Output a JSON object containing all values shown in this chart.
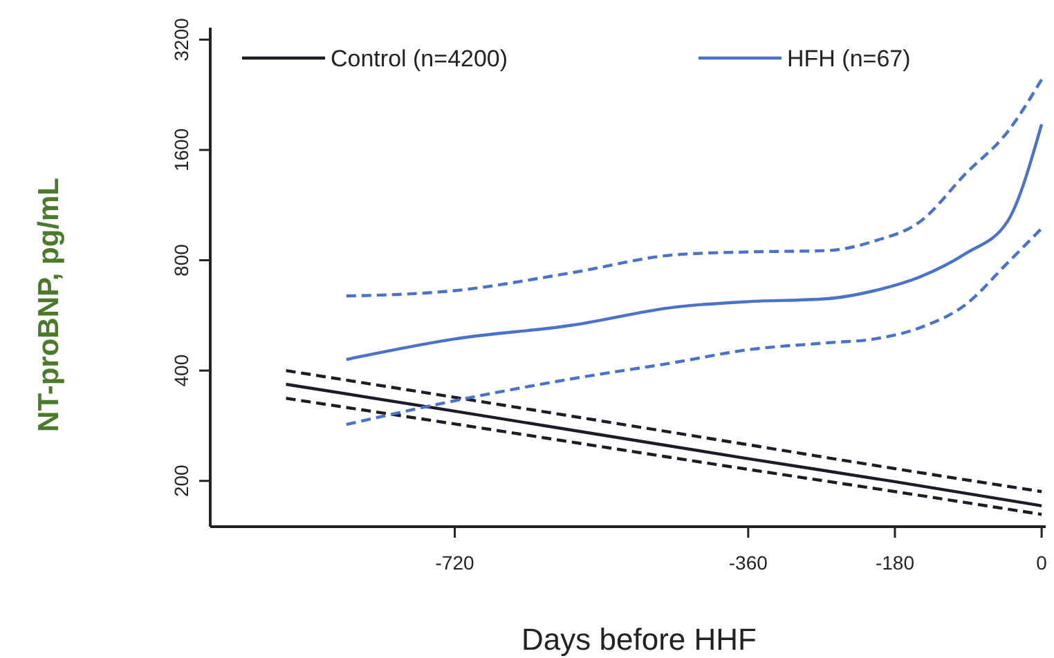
{
  "chart_data": {
    "type": "line",
    "xlabel": "Days before HHF",
    "ylabel": "NT-proBNP, pg/mL",
    "log": "y",
    "xlim": [
      -1020,
      5
    ],
    "ylim": [
      150,
      3450
    ],
    "xticks": [
      -720,
      -360,
      -180,
      0
    ],
    "yticks": [
      200,
      400,
      800,
      1600,
      3200
    ],
    "legend": "top",
    "line_style": "solid",
    "series": [
      {
        "name": "Control (n=4200)",
        "color": "#1c1c28",
        "x": [
          -927,
          -720,
          -360,
          -180,
          0
        ],
        "values": [
          367,
          310,
          230,
          199,
          171
        ]
      },
      {
        "name": "HFH (n=67)",
        "color": "#4a72c8",
        "x": [
          -853,
          -720,
          -576,
          -450,
          -360,
          -264,
          -205,
          -149,
          -93,
          -42,
          0
        ],
        "values": [
          429,
          488,
          532,
          596,
          617,
          628,
          661,
          721,
          835,
          1020,
          1880
        ]
      },
      {
        "color": "#1c1c28",
        "line_style": "dashed",
        "x": [
          -927,
          -720,
          -360,
          -180,
          0
        ],
        "values": [
          400,
          338,
          251,
          216,
          187
        ]
      },
      {
        "color": "#1c1c28",
        "line_style": "dashed",
        "x": [
          -927,
          -720,
          -360,
          -180,
          0
        ],
        "values": [
          336,
          286,
          215,
          187,
          162
        ]
      },
      {
        "color": "#4a72c8",
        "line_style": "dashed",
        "x": [
          -853,
          -720,
          -576,
          -450,
          -360,
          -264,
          -205,
          -149,
          -93,
          -42,
          0
        ],
        "values": [
          639,
          661,
          740,
          828,
          843,
          850,
          903,
          1020,
          1380,
          1790,
          2490
        ]
      },
      {
        "color": "#4a72c8",
        "line_style": "dashed",
        "x": [
          -853,
          -720,
          -576,
          -450,
          -360,
          -264,
          -205,
          -149,
          -93,
          -42,
          0
        ],
        "values": [
          285,
          331,
          380,
          421,
          456,
          476,
          488,
          524,
          606,
          786,
          977
        ]
      }
    ]
  }
}
